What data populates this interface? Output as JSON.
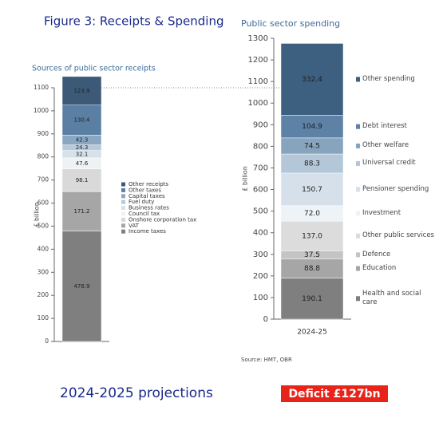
{
  "header": {
    "title": "Figure 3: Receipts & Spending"
  },
  "footer": {
    "caption": "2024-2025 projections",
    "deficit": "Deficit £127bn"
  },
  "chart_data": [
    {
      "type": "bar",
      "stacked": true,
      "title": "Sources of public sector receipts",
      "y_label": "£ billion",
      "ylim": [
        0,
        1100
      ],
      "yticks": [
        0,
        100,
        200,
        300,
        400,
        500,
        600,
        700,
        800,
        900,
        1000,
        1100
      ],
      "series": [
        {
          "name": "Income taxes",
          "color": "#7f7f7f",
          "values": [
            478.9
          ]
        },
        {
          "name": "VAT",
          "color": "#a6a6a6",
          "values": [
            171.2
          ]
        },
        {
          "name": "Onshore corporation tax",
          "color": "#d9d9d9",
          "values": [
            98.1
          ]
        },
        {
          "name": "Council tax",
          "color": "#eef2f5",
          "values": [
            47.6
          ]
        },
        {
          "name": "Business rates",
          "color": "#d6e1ea",
          "values": [
            32.1
          ]
        },
        {
          "name": "Fuel duty",
          "color": "#b8cad9",
          "values": [
            24.3
          ]
        },
        {
          "name": "Capital taxes",
          "color": "#8aa6c0",
          "values": [
            42.3
          ]
        },
        {
          "name": "Other taxes",
          "color": "#5b7fa3",
          "values": [
            130.4
          ]
        },
        {
          "name": "Other receipts",
          "color": "#3c5a78",
          "values": [
            123.9
          ]
        }
      ]
    },
    {
      "type": "bar",
      "stacked": true,
      "title": "Public sector spending",
      "y_label": "£ billion",
      "source": "Source: HMT, OBR",
      "categories": [
        "2024-25"
      ],
      "ylim": [
        0,
        1300
      ],
      "yticks": [
        0,
        100,
        200,
        300,
        400,
        500,
        600,
        700,
        800,
        900,
        1000,
        1100,
        1200,
        1300
      ],
      "series": [
        {
          "name": "Health and social care",
          "color": "#7f7f7f",
          "values": [
            190.1
          ]
        },
        {
          "name": "Education",
          "color": "#a6a6a6",
          "values": [
            88.8
          ]
        },
        {
          "name": "Defence",
          "color": "#c4c4c4",
          "values": [
            37.5
          ]
        },
        {
          "name": "Other public services",
          "color": "#dcdcdc",
          "values": [
            137.0
          ],
          "value_labels": [
            "137.0"
          ]
        },
        {
          "name": "Investment",
          "color": "#eef3f7",
          "values": [
            72.0
          ],
          "value_labels": [
            "72.0"
          ]
        },
        {
          "name": "Pensioner spending",
          "color": "#d5e0ea",
          "values": [
            150.7
          ]
        },
        {
          "name": "Universal credit",
          "color": "#b3c7d8",
          "values": [
            88.3
          ]
        },
        {
          "name": "Other welfare",
          "color": "#87a4be",
          "values": [
            74.5
          ]
        },
        {
          "name": "Debt interest",
          "color": "#5d82a6",
          "values": [
            104.9
          ]
        },
        {
          "name": "Other spending",
          "color": "#3d5f80",
          "values": [
            332.4
          ]
        }
      ]
    }
  ]
}
